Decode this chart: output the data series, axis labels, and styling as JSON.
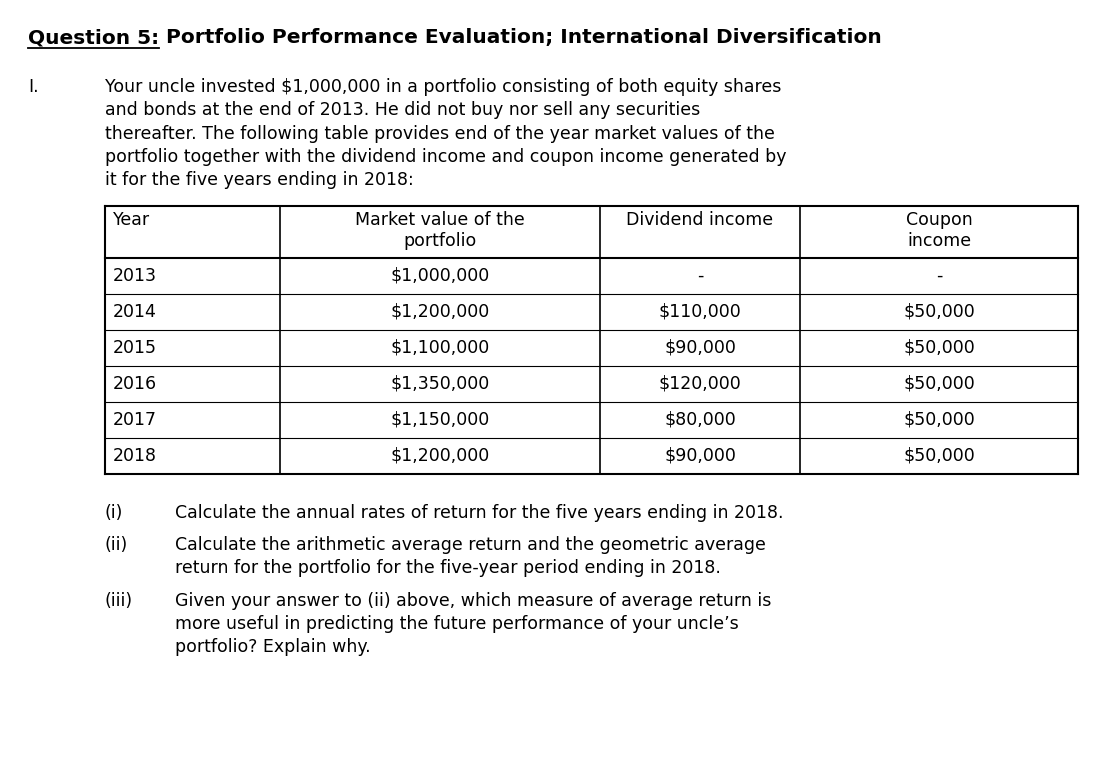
{
  "title_part1": "Question 5:",
  "title_part2": " Portfolio Performance Evaluation; International Diversification",
  "section_label": "I.",
  "intro_text": "Your uncle invested $1,000,000 in a portfolio consisting of both equity shares\nand bonds at the end of 2013. He did not buy nor sell any securities\nthereafter. The following table provides end of the year market values of the\nportfolio together with the dividend income and coupon income generated by\nit for the five years ending in 2018:",
  "table_headers": [
    "Year",
    "Market value of the\nportfolio",
    "Dividend income",
    "Coupon\nincome"
  ],
  "table_rows": [
    [
      "2013",
      "$1,000,000",
      "-",
      "-"
    ],
    [
      "2014",
      "$1,200,000",
      "$110,000",
      "$50,000"
    ],
    [
      "2015",
      "$1,100,000",
      "$90,000",
      "$50,000"
    ],
    [
      "2016",
      "$1,350,000",
      "$120,000",
      "$50,000"
    ],
    [
      "2017",
      "$1,150,000",
      "$80,000",
      "$50,000"
    ],
    [
      "2018",
      "$1,200,000",
      "$90,000",
      "$50,000"
    ]
  ],
  "questions": [
    {
      "label": "(i)",
      "text": "Calculate the annual rates of return for the five years ending in 2018."
    },
    {
      "label": "(ii)",
      "text": "Calculate the arithmetic average return and the geometric average\nreturn for the portfolio for the five-year period ending in 2018."
    },
    {
      "label": "(iii)",
      "text": "Given your answer to (ii) above, which measure of average return is\nmore useful in predicting the future performance of your uncle’s\nportfolio? Explain why."
    }
  ],
  "bg_color": "#ffffff",
  "text_color": "#000000",
  "font_size": 12.5,
  "title_font_size": 14.5,
  "table_font_size": 12.5
}
